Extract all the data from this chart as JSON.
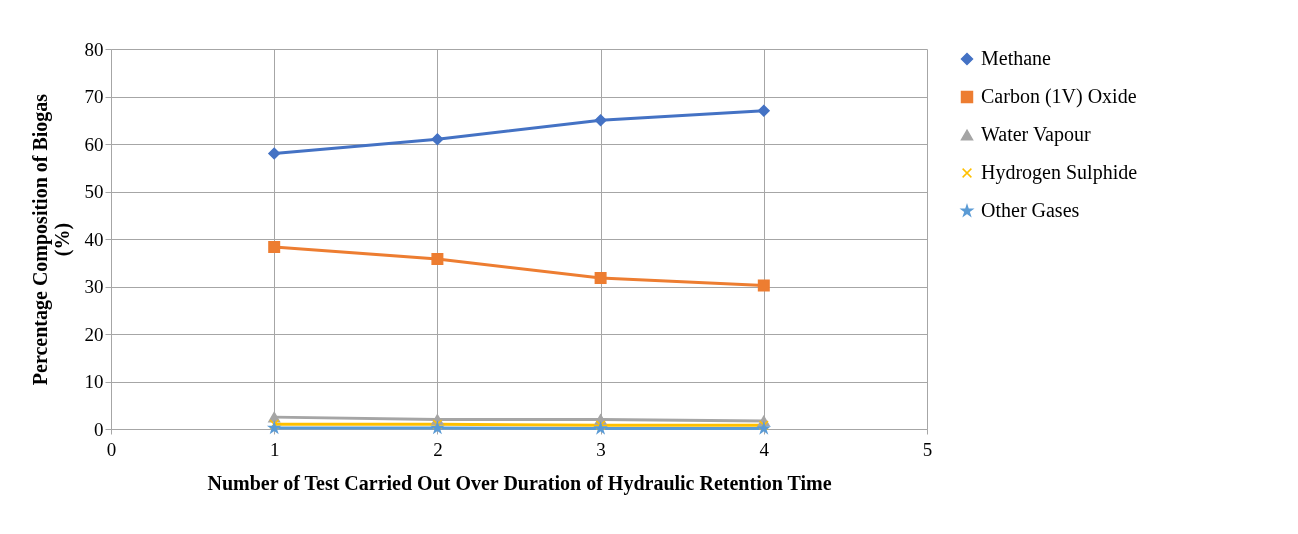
{
  "chart_data": {
    "type": "line",
    "xlabel": "Number of Test Carried Out Over Duration of Hydraulic Retention Time",
    "ylabel": "Percentage Composition of Biogas (%)",
    "x": [
      1,
      2,
      3,
      4
    ],
    "xlim": [
      0,
      5
    ],
    "xticks": [
      0,
      1,
      2,
      3,
      4,
      5
    ],
    "ylim": [
      0,
      80
    ],
    "yticks": [
      0,
      10,
      20,
      30,
      40,
      50,
      60,
      70,
      80
    ],
    "grid": true,
    "legend": "right",
    "series": [
      {
        "name": "Methane",
        "color": "#4472c4",
        "marker": "diamond",
        "values": [
          58,
          61,
          65,
          67
        ]
      },
      {
        "name": "Carbon (1V) Oxide",
        "color": "#ed7d31",
        "marker": "square",
        "values": [
          38.3,
          35.8,
          31.8,
          30.2
        ]
      },
      {
        "name": "Water Vapour",
        "color": "#a5a5a5",
        "marker": "triangle",
        "values": [
          2.5,
          2.0,
          2.0,
          1.7
        ]
      },
      {
        "name": "Hydrogen Sulphide",
        "color": "#ffc000",
        "marker": "cross",
        "values": [
          1.0,
          1.0,
          0.8,
          0.8
        ]
      },
      {
        "name": "Other Gases",
        "color": "#5b9bd5",
        "marker": "star",
        "values": [
          0.2,
          0.2,
          0.1,
          0.1
        ]
      }
    ]
  }
}
